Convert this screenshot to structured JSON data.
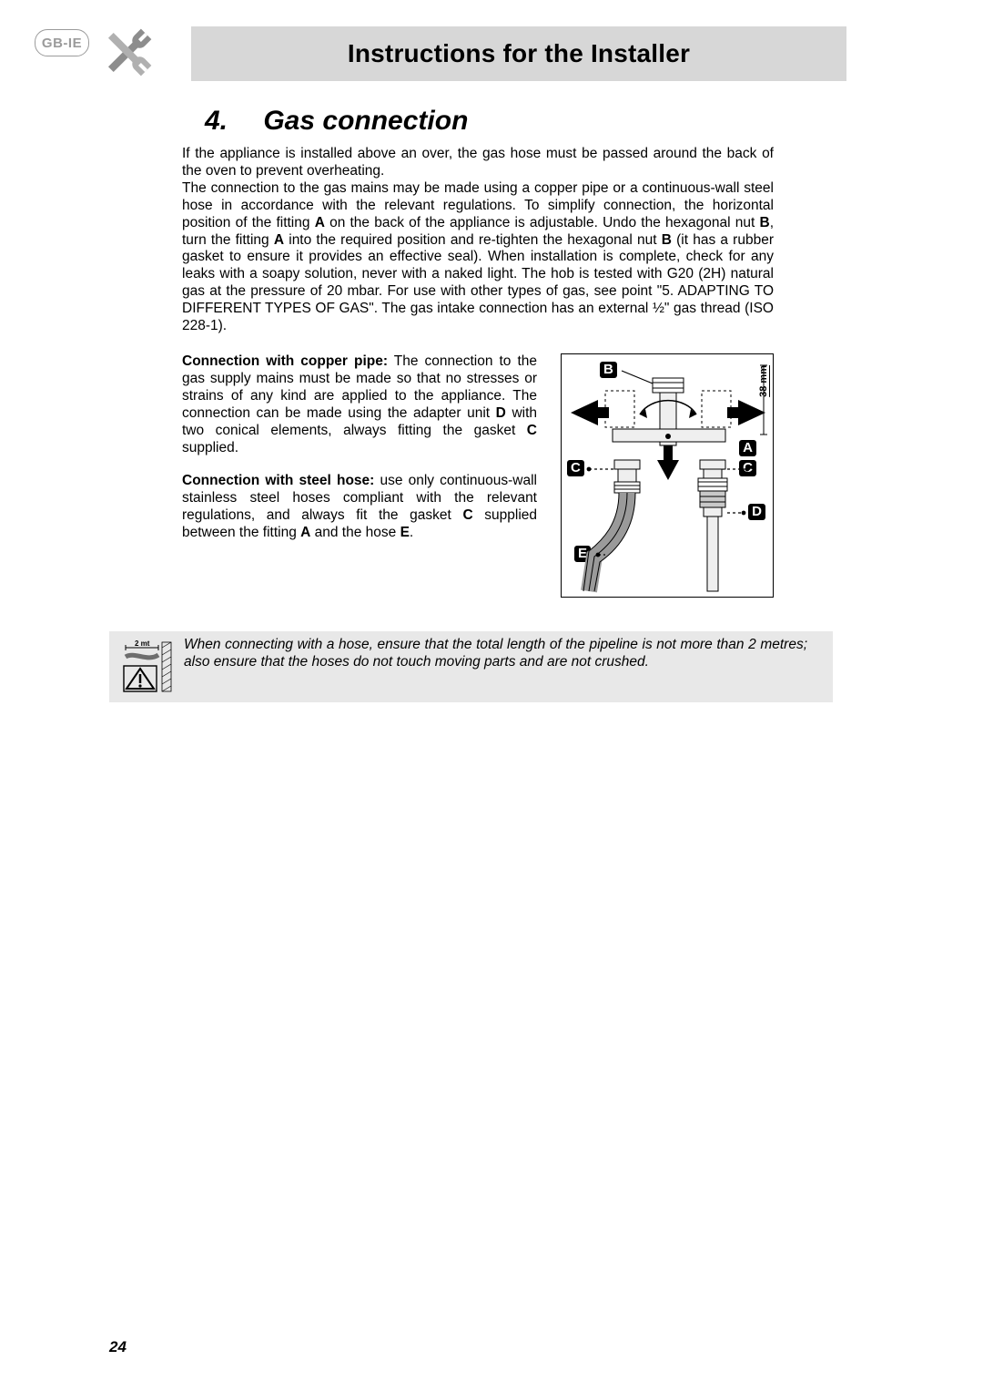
{
  "colors": {
    "header_bg": "#d7d7d7",
    "warn_bg": "#e8e8e8",
    "text": "#000000",
    "badge_border": "#9b9b9b",
    "page_bg": "#ffffff",
    "diagram_stroke": "#000000",
    "diagram_fill_light": "#efefef",
    "diagram_fill_mid": "#c9c9c9"
  },
  "badge": {
    "text": "GB-IE"
  },
  "header": {
    "title": "Instructions for the Installer"
  },
  "section": {
    "number": "4.",
    "title": "Gas connection"
  },
  "intro_html": "If the appliance is installed above an over, the gas hose must be passed around the back of the oven to prevent overheating.<br>The connection to the gas mains may be made using a copper pipe or a continuous-wall steel hose in accordance with the relevant regulations. To simplify connection, the horizontal position of the fitting <span class=\"b\">A</span> on the back of the appliance is adjustable. Undo the hexagonal nut <span class=\"b\">B</span>, turn the fitting <span class=\"b\">A</span> into the required position and re-tighten the hexagonal nut <span class=\"b\">B</span> (it has a rubber gasket to ensure it provides an effective seal). When installation is complete, check for any leaks with a soapy solution, never with a naked light. The hob is tested with G20 (2H) natural gas at the pressure of 20 mbar. For use with other types of gas, see point \"5. ADAPTING TO DIFFERENT TYPES OF GAS\". The gas intake connection has an external ½\" gas thread (ISO 228-1).",
  "copper_html": "<span class=\"lead\">Connection with copper pipe:</span> The connection to the gas supply mains must be made so that no stresses or strains of any kind are applied to the appliance. The connection can be made using the adapter unit <span class=\"b\">D</span> with two conical elements, always fitting the gasket <span class=\"b\">C</span> supplied.",
  "steel_html": "<span class=\"lead\">Connection with steel hose:</span> use only continuous-wall stainless steel hoses compliant with the relevant regulations, and always fit the gasket <span class=\"b\">C</span> supplied between the fitting <span class=\"b\">A</span> and the hose <span class=\"b\">E</span>.",
  "diagram": {
    "dimension_label": "38 mm",
    "labels": {
      "A": "A",
      "B": "B",
      "C": "C",
      "D": "D",
      "E": "E"
    }
  },
  "warning": {
    "dim_text": "2 mt",
    "text": "When connecting with a hose, ensure that the total length of the pipeline is not more than 2 metres; also ensure that the hoses do not touch moving parts and are not crushed."
  },
  "page_number": "24"
}
